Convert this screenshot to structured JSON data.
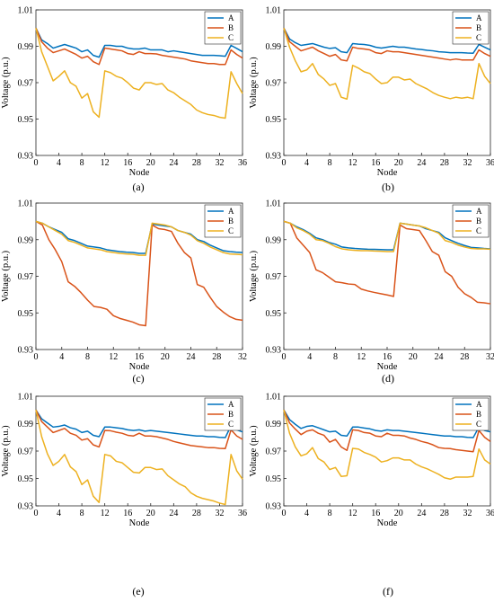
{
  "colors": {
    "A": "#0072BD",
    "B": "#D95319",
    "C": "#EDB120"
  },
  "chart_data": [
    {
      "type": "line",
      "caption": "(a)",
      "xlabel": "Node",
      "ylabel": "Voltage (p.u.)",
      "xlim": [
        0,
        36
      ],
      "ylim": [
        0.93,
        1.01
      ],
      "xticks": [
        "0",
        "4",
        "8",
        "12",
        "16",
        "20",
        "24",
        "28",
        "32",
        "36"
      ],
      "yticks": [
        "0.93",
        "0.95",
        "0.97",
        "0.99",
        "1.01"
      ],
      "legend": "top-right",
      "x": [
        0,
        1,
        2,
        3,
        4,
        5,
        6,
        7,
        8,
        9,
        10,
        11,
        12,
        13,
        14,
        15,
        16,
        17,
        18,
        19,
        20,
        21,
        22,
        23,
        24,
        25,
        26,
        27,
        28,
        29,
        30,
        31,
        32,
        33,
        34,
        35,
        36
      ],
      "series": [
        {
          "name": "A",
          "values": [
            1.0,
            0.9935,
            0.9915,
            0.989,
            0.99,
            0.991,
            0.99,
            0.989,
            0.987,
            0.988,
            0.985,
            0.984,
            0.9905,
            0.9905,
            0.99,
            0.99,
            0.989,
            0.9885,
            0.9885,
            0.989,
            0.988,
            0.988,
            0.988,
            0.987,
            0.9875,
            0.987,
            0.9865,
            0.986,
            0.9855,
            0.985,
            0.985,
            0.985,
            0.9848,
            0.9845,
            0.9905,
            0.9888,
            0.987
          ]
        },
        {
          "name": "B",
          "values": [
            1.0,
            0.9925,
            0.989,
            0.9865,
            0.9875,
            0.9885,
            0.987,
            0.9855,
            0.9835,
            0.9845,
            0.9815,
            0.98,
            0.989,
            0.9885,
            0.988,
            0.9875,
            0.986,
            0.9855,
            0.987,
            0.986,
            0.986,
            0.9858,
            0.985,
            0.9845,
            0.984,
            0.9835,
            0.983,
            0.982,
            0.9815,
            0.981,
            0.9805,
            0.9805,
            0.98,
            0.98,
            0.988,
            0.9855,
            0.9835
          ]
        },
        {
          "name": "C",
          "values": [
            1.0,
            0.987,
            0.979,
            0.971,
            0.9735,
            0.9765,
            0.97,
            0.968,
            0.9615,
            0.964,
            0.954,
            0.951,
            0.9765,
            0.9755,
            0.9735,
            0.9725,
            0.97,
            0.967,
            0.966,
            0.97,
            0.97,
            0.969,
            0.9695,
            0.966,
            0.9645,
            0.962,
            0.96,
            0.958,
            0.955,
            0.9535,
            0.9525,
            0.952,
            0.951,
            0.9505,
            0.976,
            0.9695,
            0.964
          ]
        }
      ]
    },
    {
      "type": "line",
      "caption": "(b)",
      "xlabel": "Node",
      "ylabel": "Voltage (p.u.)",
      "xlim": [
        0,
        36
      ],
      "ylim": [
        0.93,
        1.01
      ],
      "xticks": [
        "0",
        "4",
        "8",
        "12",
        "16",
        "20",
        "24",
        "28",
        "32",
        "36"
      ],
      "yticks": [
        "0.93",
        "0.95",
        "0.97",
        "0.99",
        "1.01"
      ],
      "legend": "top-right",
      "x": [
        0,
        1,
        2,
        3,
        4,
        5,
        6,
        7,
        8,
        9,
        10,
        11,
        12,
        13,
        14,
        15,
        16,
        17,
        18,
        19,
        20,
        21,
        22,
        23,
        24,
        25,
        26,
        27,
        28,
        29,
        30,
        31,
        32,
        33,
        34,
        35,
        36
      ],
      "series": [
        {
          "name": "A",
          "values": [
            1.0,
            0.994,
            0.992,
            0.9905,
            0.991,
            0.9915,
            0.9905,
            0.9895,
            0.9888,
            0.9892,
            0.987,
            0.9865,
            0.9915,
            0.9912,
            0.991,
            0.9905,
            0.9895,
            0.989,
            0.9895,
            0.99,
            0.9895,
            0.9895,
            0.989,
            0.9885,
            0.9882,
            0.9878,
            0.9875,
            0.987,
            0.9868,
            0.9865,
            0.9865,
            0.9865,
            0.9863,
            0.9862,
            0.991,
            0.9895,
            0.988
          ]
        },
        {
          "name": "B",
          "values": [
            1.0,
            0.9925,
            0.99,
            0.9875,
            0.9885,
            0.9895,
            0.9875,
            0.986,
            0.9845,
            0.9855,
            0.9825,
            0.982,
            0.9895,
            0.9888,
            0.9885,
            0.988,
            0.9865,
            0.986,
            0.9875,
            0.987,
            0.987,
            0.9865,
            0.986,
            0.9855,
            0.985,
            0.9845,
            0.984,
            0.9835,
            0.983,
            0.9825,
            0.983,
            0.9825,
            0.9825,
            0.9825,
            0.988,
            0.986,
            0.9845
          ]
        },
        {
          "name": "C",
          "values": [
            1.0,
            0.9895,
            0.982,
            0.976,
            0.977,
            0.9805,
            0.9745,
            0.972,
            0.9685,
            0.9695,
            0.962,
            0.961,
            0.9795,
            0.978,
            0.976,
            0.975,
            0.972,
            0.9695,
            0.97,
            0.973,
            0.973,
            0.9715,
            0.972,
            0.9695,
            0.968,
            0.9665,
            0.9645,
            0.963,
            0.962,
            0.9612,
            0.962,
            0.9615,
            0.962,
            0.9612,
            0.9805,
            0.9735,
            0.9695
          ]
        }
      ]
    },
    {
      "type": "line",
      "caption": "(c)",
      "xlabel": "Node",
      "ylabel": "Voltage (p.u.)",
      "xlim": [
        0,
        32
      ],
      "ylim": [
        0.93,
        1.01
      ],
      "xticks": [
        "0",
        "4",
        "8",
        "12",
        "16",
        "20",
        "24",
        "28",
        "32"
      ],
      "yticks": [
        "0.93",
        "0.95",
        "0.97",
        "0.99",
        "1.01"
      ],
      "legend": "top-right",
      "x": [
        0,
        1,
        2,
        3,
        4,
        5,
        6,
        7,
        8,
        9,
        10,
        11,
        12,
        13,
        14,
        15,
        16,
        17,
        18,
        19,
        20,
        21,
        22,
        23,
        24,
        25,
        26,
        27,
        28,
        29,
        30,
        31,
        32
      ],
      "series": [
        {
          "name": "A",
          "values": [
            1.0,
            0.999,
            0.997,
            0.9955,
            0.994,
            0.9905,
            0.9895,
            0.988,
            0.9865,
            0.986,
            0.9855,
            0.9845,
            0.984,
            0.9835,
            0.9832,
            0.983,
            0.9825,
            0.9825,
            0.9985,
            0.998,
            0.9975,
            0.997,
            0.995,
            0.994,
            0.993,
            0.99,
            0.989,
            0.987,
            0.9855,
            0.984,
            0.9835,
            0.9832,
            0.983
          ]
        },
        {
          "name": "B",
          "values": [
            1.0,
            0.998,
            0.99,
            0.9845,
            0.978,
            0.967,
            0.9645,
            0.961,
            0.957,
            0.9535,
            0.953,
            0.952,
            0.9485,
            0.947,
            0.946,
            0.945,
            0.9435,
            0.943,
            0.998,
            0.996,
            0.9955,
            0.9945,
            0.988,
            0.983,
            0.98,
            0.9655,
            0.964,
            0.9585,
            0.9535,
            0.9505,
            0.948,
            0.9465,
            0.946
          ]
        },
        {
          "name": "C",
          "values": [
            1.0,
            0.999,
            0.997,
            0.995,
            0.993,
            0.9895,
            0.9885,
            0.987,
            0.9855,
            0.985,
            0.9845,
            0.9835,
            0.983,
            0.9825,
            0.9822,
            0.982,
            0.9815,
            0.9815,
            0.999,
            0.9985,
            0.998,
            0.997,
            0.995,
            0.994,
            0.9925,
            0.9895,
            0.988,
            0.986,
            0.9845,
            0.983,
            0.9822,
            0.982,
            0.9818
          ]
        }
      ]
    },
    {
      "type": "line",
      "caption": "(d)",
      "xlabel": "Node",
      "ylabel": "Voltage (p.u.)",
      "xlim": [
        0,
        32
      ],
      "ylim": [
        0.93,
        1.01
      ],
      "xticks": [
        "0",
        "4",
        "8",
        "12",
        "16",
        "20",
        "24",
        "28",
        "32"
      ],
      "yticks": [
        "0.93",
        "0.95",
        "0.97",
        "0.99",
        "1.01"
      ],
      "legend": "top-right",
      "x": [
        0,
        1,
        2,
        3,
        4,
        5,
        6,
        7,
        8,
        9,
        10,
        11,
        12,
        13,
        14,
        15,
        16,
        17,
        18,
        19,
        20,
        21,
        22,
        23,
        24,
        25,
        26,
        27,
        28,
        29,
        30,
        31,
        32
      ],
      "series": [
        {
          "name": "A",
          "values": [
            1.0,
            0.999,
            0.997,
            0.9955,
            0.9935,
            0.991,
            0.99,
            0.9885,
            0.9875,
            0.986,
            0.9855,
            0.9852,
            0.985,
            0.9848,
            0.9847,
            0.9846,
            0.9845,
            0.9845,
            0.999,
            0.9985,
            0.998,
            0.9975,
            0.996,
            0.995,
            0.994,
            0.991,
            0.9895,
            0.988,
            0.9868,
            0.9858,
            0.9855,
            0.9852,
            0.985
          ]
        },
        {
          "name": "B",
          "values": [
            1.0,
            0.999,
            0.991,
            0.987,
            0.983,
            0.9735,
            0.972,
            0.9695,
            0.967,
            0.9665,
            0.9658,
            0.9655,
            0.963,
            0.962,
            0.9612,
            0.9605,
            0.9598,
            0.959,
            0.998,
            0.996,
            0.9955,
            0.995,
            0.9895,
            0.9835,
            0.9815,
            0.9725,
            0.97,
            0.964,
            0.9605,
            0.9585,
            0.9558,
            0.9555,
            0.955
          ]
        },
        {
          "name": "C",
          "values": [
            1.0,
            0.999,
            0.9965,
            0.995,
            0.993,
            0.99,
            0.9895,
            0.988,
            0.9862,
            0.985,
            0.9845,
            0.9842,
            0.984,
            0.984,
            0.9838,
            0.9837,
            0.9835,
            0.9835,
            0.999,
            0.9985,
            0.998,
            0.9975,
            0.9965,
            0.995,
            0.9935,
            0.9895,
            0.9885,
            0.987,
            0.986,
            0.9852,
            0.985,
            0.985,
            0.9848
          ]
        }
      ]
    },
    {
      "type": "line",
      "caption": "(e)",
      "xlabel": "Node",
      "ylabel": "Voltage (p.u.)",
      "xlim": [
        0,
        36
      ],
      "ylim": [
        0.93,
        1.01
      ],
      "xticks": [
        "0",
        "4",
        "8",
        "12",
        "16",
        "20",
        "24",
        "28",
        "32",
        "36"
      ],
      "yticks": [
        "0.93",
        "0.95",
        "0.97",
        "0.99",
        "1.01"
      ],
      "legend": "top-right",
      "x": [
        0,
        1,
        2,
        3,
        4,
        5,
        6,
        7,
        8,
        9,
        10,
        11,
        12,
        13,
        14,
        15,
        16,
        17,
        18,
        19,
        20,
        21,
        22,
        23,
        24,
        25,
        26,
        27,
        28,
        29,
        30,
        31,
        32,
        33,
        34,
        35,
        36
      ],
      "series": [
        {
          "name": "A",
          "values": [
            1.0,
            0.9935,
            0.9905,
            0.9875,
            0.988,
            0.989,
            0.987,
            0.986,
            0.9835,
            0.9845,
            0.9815,
            0.9805,
            0.9875,
            0.9875,
            0.987,
            0.9865,
            0.9855,
            0.985,
            0.9855,
            0.9845,
            0.985,
            0.9845,
            0.984,
            0.9835,
            0.983,
            0.9825,
            0.982,
            0.9815,
            0.981,
            0.981,
            0.9805,
            0.9805,
            0.98,
            0.9798,
            0.9885,
            0.9855,
            0.984
          ]
        },
        {
          "name": "B",
          "values": [
            1.0,
            0.9915,
            0.9875,
            0.9835,
            0.985,
            0.9865,
            0.983,
            0.9815,
            0.978,
            0.979,
            0.9745,
            0.973,
            0.985,
            0.9848,
            0.9838,
            0.983,
            0.9815,
            0.981,
            0.983,
            0.981,
            0.981,
            0.9805,
            0.9795,
            0.9785,
            0.977,
            0.976,
            0.975,
            0.974,
            0.9735,
            0.973,
            0.9725,
            0.9725,
            0.972,
            0.9718,
            0.9855,
            0.981,
            0.9785
          ]
        },
        {
          "name": "C",
          "values": [
            1.0,
            0.9805,
            0.968,
            0.9595,
            0.9625,
            0.9675,
            0.9585,
            0.955,
            0.9455,
            0.949,
            0.937,
            0.9325,
            0.9675,
            0.9665,
            0.9625,
            0.9615,
            0.958,
            0.9545,
            0.954,
            0.958,
            0.958,
            0.9565,
            0.957,
            0.952,
            0.949,
            0.946,
            0.944,
            0.9395,
            0.937,
            0.9355,
            0.9345,
            0.9335,
            0.932,
            0.931,
            0.9675,
            0.9555,
            0.9495
          ]
        }
      ]
    },
    {
      "type": "line",
      "caption": "(f)",
      "xlabel": "Node",
      "ylabel": "Voltage (p.u.)",
      "xlim": [
        0,
        36
      ],
      "ylim": [
        0.93,
        1.01
      ],
      "xticks": [
        "0",
        "4",
        "8",
        "12",
        "16",
        "20",
        "24",
        "28",
        "32",
        "36"
      ],
      "yticks": [
        "0.93",
        "0.95",
        "0.97",
        "0.99",
        "1.01"
      ],
      "legend": "top-right",
      "x": [
        0,
        1,
        2,
        3,
        4,
        5,
        6,
        7,
        8,
        9,
        10,
        11,
        12,
        13,
        14,
        15,
        16,
        17,
        18,
        19,
        20,
        21,
        22,
        23,
        24,
        25,
        26,
        27,
        28,
        29,
        30,
        31,
        32,
        33,
        34,
        35,
        36
      ],
      "series": [
        {
          "name": "A",
          "values": [
            1.0,
            0.993,
            0.9895,
            0.9865,
            0.988,
            0.9885,
            0.987,
            0.9855,
            0.984,
            0.9845,
            0.9815,
            0.981,
            0.9875,
            0.9875,
            0.9868,
            0.9862,
            0.985,
            0.9845,
            0.9855,
            0.985,
            0.985,
            0.9845,
            0.984,
            0.9835,
            0.983,
            0.9825,
            0.982,
            0.9815,
            0.981,
            0.981,
            0.9805,
            0.9805,
            0.98,
            0.9798,
            0.9875,
            0.985,
            0.984
          ]
        },
        {
          "name": "B",
          "values": [
            1.0,
            0.9905,
            0.986,
            0.982,
            0.9845,
            0.9855,
            0.983,
            0.9815,
            0.9765,
            0.9785,
            0.973,
            0.9705,
            0.9855,
            0.985,
            0.9835,
            0.983,
            0.981,
            0.9805,
            0.983,
            0.9815,
            0.9815,
            0.981,
            0.9795,
            0.9785,
            0.977,
            0.976,
            0.9745,
            0.9725,
            0.972,
            0.9718,
            0.971,
            0.9705,
            0.97,
            0.9695,
            0.985,
            0.98,
            0.977
          ]
        },
        {
          "name": "C",
          "values": [
            1.0,
            0.983,
            0.973,
            0.9665,
            0.968,
            0.9725,
            0.9645,
            0.962,
            0.9565,
            0.958,
            0.9515,
            0.952,
            0.972,
            0.9715,
            0.969,
            0.9675,
            0.9655,
            0.962,
            0.963,
            0.965,
            0.965,
            0.9635,
            0.9635,
            0.9605,
            0.9585,
            0.957,
            0.955,
            0.953,
            0.9505,
            0.9495,
            0.951,
            0.951,
            0.951,
            0.9515,
            0.9715,
            0.9635,
            0.9605
          ]
        }
      ]
    }
  ]
}
